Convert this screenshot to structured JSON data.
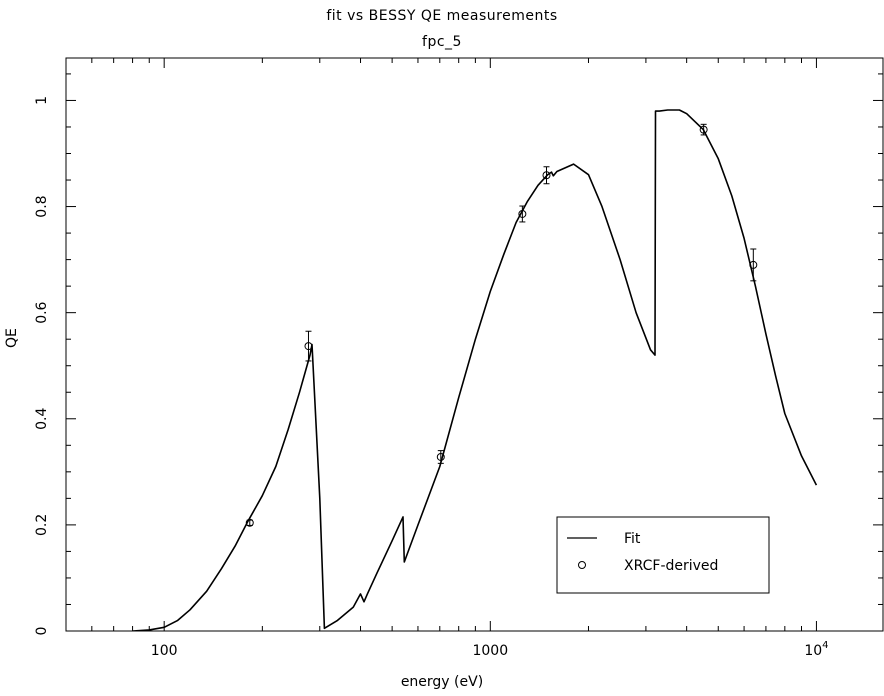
{
  "chart_data": {
    "type": "line",
    "title": "fit vs BESSY QE measurements",
    "subtitle": "fpc_5",
    "xlabel": "energy (eV)",
    "ylabel": "QE",
    "xscale": "log",
    "xlim": [
      50,
      16000
    ],
    "ylim": [
      0,
      1.08
    ],
    "xticks": [
      {
        "value": 100,
        "label": "100"
      },
      {
        "value": 1000,
        "label": "1000"
      },
      {
        "value": 10000,
        "label": "10",
        "sup": "4"
      }
    ],
    "yticks": [
      {
        "value": 0,
        "label": "0"
      },
      {
        "value": 0.2,
        "label": "0.2"
      },
      {
        "value": 0.4,
        "label": "0.4"
      },
      {
        "value": 0.6,
        "label": "0.6"
      },
      {
        "value": 0.8,
        "label": "0.8"
      },
      {
        "value": 1,
        "label": "1"
      }
    ],
    "grid": false,
    "legend_position": "bottom-right",
    "series": [
      {
        "name": "Fit",
        "style": "line",
        "x": [
          80,
          90,
          100,
          110,
          120,
          135,
          150,
          165,
          180,
          200,
          220,
          240,
          260,
          280,
          284,
          300,
          310,
          340,
          380,
          400,
          410,
          420,
          450,
          500,
          540,
          545,
          560,
          600,
          700,
          800,
          900,
          1000,
          1100,
          1200,
          1300,
          1400,
          1500,
          1540,
          1560,
          1600,
          1800,
          2000,
          2200,
          2500,
          2800,
          3100,
          3200,
          3210,
          3300,
          3500,
          3800,
          4000,
          4500,
          5000,
          5500,
          6000,
          6500,
          7000,
          7500,
          8000,
          9000,
          10000
        ],
        "y": [
          0.0,
          0.002,
          0.007,
          0.02,
          0.04,
          0.075,
          0.118,
          0.16,
          0.205,
          0.255,
          0.31,
          0.38,
          0.45,
          0.52,
          0.54,
          0.25,
          0.005,
          0.02,
          0.045,
          0.07,
          0.055,
          0.07,
          0.11,
          0.17,
          0.215,
          0.13,
          0.15,
          0.2,
          0.31,
          0.44,
          0.55,
          0.64,
          0.71,
          0.77,
          0.81,
          0.84,
          0.86,
          0.865,
          0.858,
          0.866,
          0.88,
          0.86,
          0.8,
          0.7,
          0.6,
          0.53,
          0.52,
          0.98,
          0.98,
          0.982,
          0.982,
          0.975,
          0.945,
          0.89,
          0.82,
          0.74,
          0.65,
          0.56,
          0.48,
          0.41,
          0.33,
          0.275
        ]
      },
      {
        "name": "XRCF-derived",
        "style": "markers",
        "x": [
          183,
          277,
          705,
          1254,
          1487,
          4510,
          6404
        ],
        "y": [
          0.204,
          0.537,
          0.328,
          0.786,
          0.859,
          0.945,
          0.69
        ],
        "err": [
          0.005,
          0.028,
          0.012,
          0.015,
          0.016,
          0.01,
          0.03
        ]
      }
    ]
  }
}
